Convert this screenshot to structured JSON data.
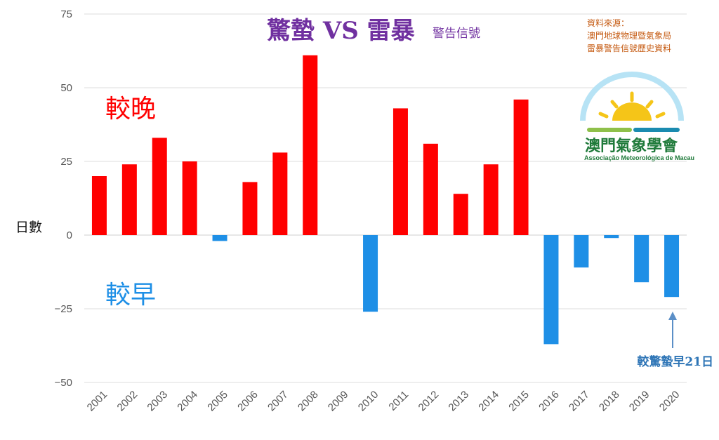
{
  "chart_data": {
    "type": "bar",
    "title": "驚蟄 VS 雷暴",
    "subtitle": "警告信號",
    "ylabel": "日數",
    "ylim": [
      -50,
      75
    ],
    "yticks": [
      75,
      50,
      25,
      0,
      -25,
      -50
    ],
    "ytick_labels": [
      "75",
      "50",
      "25",
      "0",
      "−25",
      "−50"
    ],
    "categories": [
      "2001",
      "2002",
      "2003",
      "2004",
      "2005",
      "2006",
      "2007",
      "2008",
      "2009",
      "2010",
      "2011",
      "2012",
      "2013",
      "2014",
      "2015",
      "2016",
      "2017",
      "2018",
      "2019",
      "2020"
    ],
    "values": [
      20,
      24,
      33,
      25,
      -2,
      18,
      28,
      61,
      0,
      -26,
      43,
      31,
      14,
      24,
      46,
      -37,
      -11,
      -1,
      -16,
      -21
    ],
    "grid": true,
    "colors": {
      "positive": "#ff0000",
      "negative": "#1e8fe6"
    },
    "annotations": {
      "later": "較晚",
      "earlier": "較早",
      "note_2020": "較驚蟄早21日"
    }
  },
  "source": {
    "line1": "資料來源：",
    "line2": "澳門地球物理暨氣象局",
    "line3": "雷暴警告信號歷史資料"
  },
  "logo": {
    "name": "澳門氣象學會",
    "subtitle": "Associação Meteorológica de Macau"
  }
}
